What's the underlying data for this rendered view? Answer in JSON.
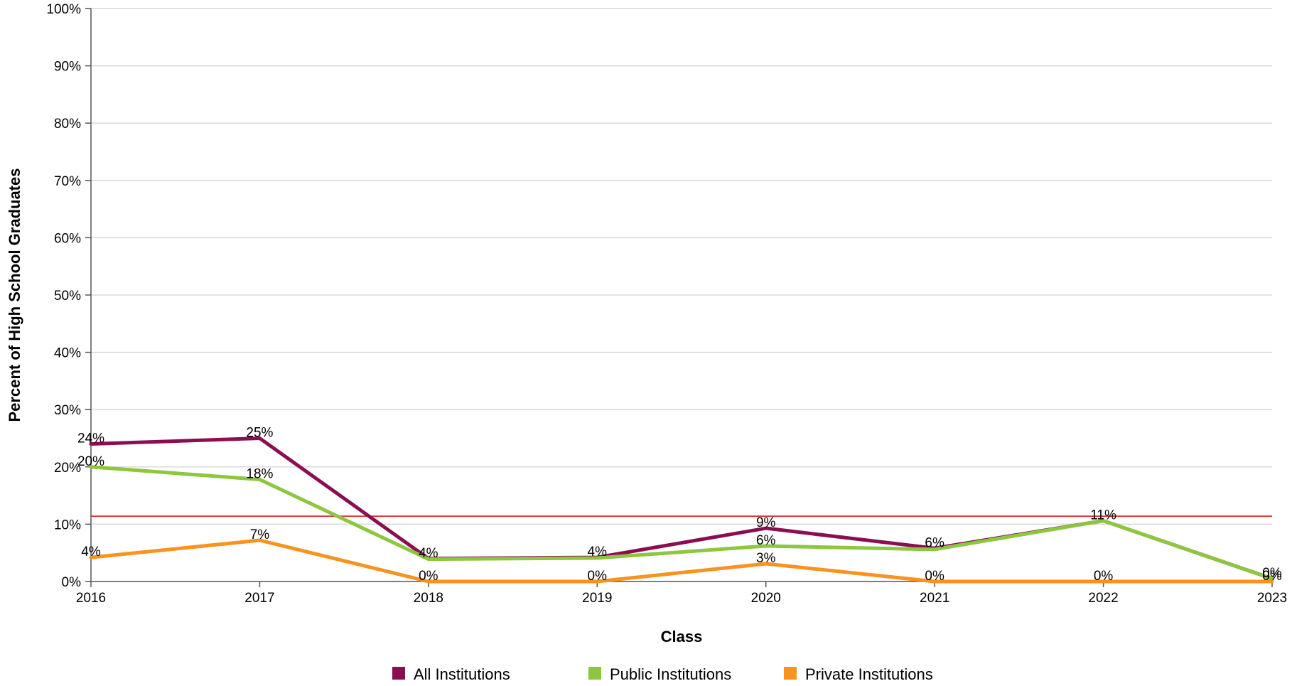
{
  "chart_data": {
    "type": "line",
    "title": "",
    "xlabel": "Class",
    "ylabel": "Percent of High School Graduates",
    "categories": [
      "2016",
      "2017",
      "2018",
      "2019",
      "2020",
      "2021",
      "2022",
      "2023"
    ],
    "yticks": [
      "0%",
      "10%",
      "20%",
      "30%",
      "40%",
      "50%",
      "60%",
      "70%",
      "80%",
      "90%",
      "100%"
    ],
    "ylim": [
      0,
      100
    ],
    "grid": true,
    "legend_position": "bottom",
    "reference_line": {
      "value": 11.4,
      "color": "#e8262d"
    },
    "series": [
      {
        "name": "All Institutions",
        "color": "#8a0f52",
        "values": [
          24,
          25,
          4,
          4.2,
          9.3,
          5.8,
          10.6,
          0.5
        ],
        "labels": [
          "24%",
          "25%",
          "4%",
          "4%",
          "9%",
          "6%",
          "11%",
          "0%"
        ]
      },
      {
        "name": "Public Institutions",
        "color": "#8dc63f",
        "values": [
          20,
          17.8,
          3.9,
          4.1,
          6.2,
          5.6,
          10.6,
          0.5
        ],
        "labels": [
          "20%",
          "18%",
          "",
          "",
          "6%",
          "",
          "",
          ""
        ]
      },
      {
        "name": "Private Institutions",
        "color": "#f7931e",
        "values": [
          4.2,
          7.2,
          0,
          0,
          3.1,
          0,
          0,
          0
        ],
        "labels": [
          "4%",
          "7%",
          "0%",
          "0%",
          "3%",
          "0%",
          "0%",
          "0%"
        ]
      }
    ]
  }
}
